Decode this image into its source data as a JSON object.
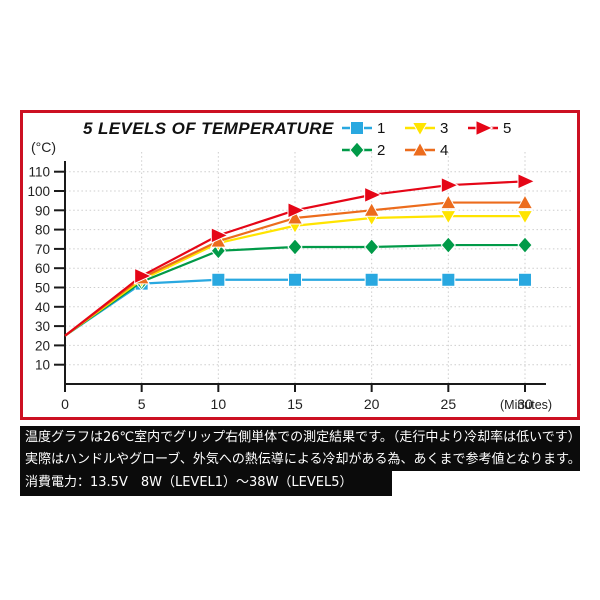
{
  "chart": {
    "title": "5 LEVELS OF TEMPERATURE",
    "ylabel": "(°C)",
    "xlabel": "(Minutes)",
    "border_color": "#cc1022"
  },
  "chart_data": {
    "type": "line",
    "title": "5 LEVELS OF TEMPERATURE",
    "xlabel": "(Minutes)",
    "ylabel": "(°C)",
    "x": [
      0,
      5,
      10,
      15,
      20,
      25,
      30
    ],
    "x_ticks": [
      0,
      5,
      10,
      15,
      20,
      25,
      30
    ],
    "y_ticks": [
      10,
      20,
      30,
      40,
      50,
      60,
      70,
      80,
      90,
      100,
      110
    ],
    "xlim": [
      0,
      31
    ],
    "ylim": [
      0,
      115
    ],
    "grid": true,
    "legend_position": "top-right",
    "series": [
      {
        "name": "1",
        "color": "#29a8e0",
        "marker": "square",
        "values": [
          25,
          52,
          54,
          54,
          54,
          54,
          54
        ]
      },
      {
        "name": "2",
        "color": "#019a48",
        "marker": "diamond",
        "values": [
          25,
          53,
          69,
          71,
          71,
          72,
          72
        ]
      },
      {
        "name": "3",
        "color": "#ffe400",
        "marker": "triangle-down",
        "values": [
          25,
          54,
          73,
          82,
          86,
          87,
          87
        ]
      },
      {
        "name": "4",
        "color": "#ec6c1d",
        "marker": "triangle-up",
        "values": [
          25,
          55,
          74,
          86,
          90,
          94,
          94
        ]
      },
      {
        "name": "5",
        "color": "#e50617",
        "marker": "arrow-right",
        "values": [
          25,
          56,
          77,
          90,
          98,
          103,
          105
        ]
      }
    ]
  },
  "footer": {
    "line1": "温度グラフは26℃室内でグリップ右側単体での測定結果です。（走行中より冷却率は低いです）",
    "line2": "実際はハンドルやグローブ、外気への熱伝導による冷却がある為、あくまで参考値となります。",
    "line3": "消費電力：13.5V　8W（LEVEL1）～38W（LEVEL5）"
  }
}
